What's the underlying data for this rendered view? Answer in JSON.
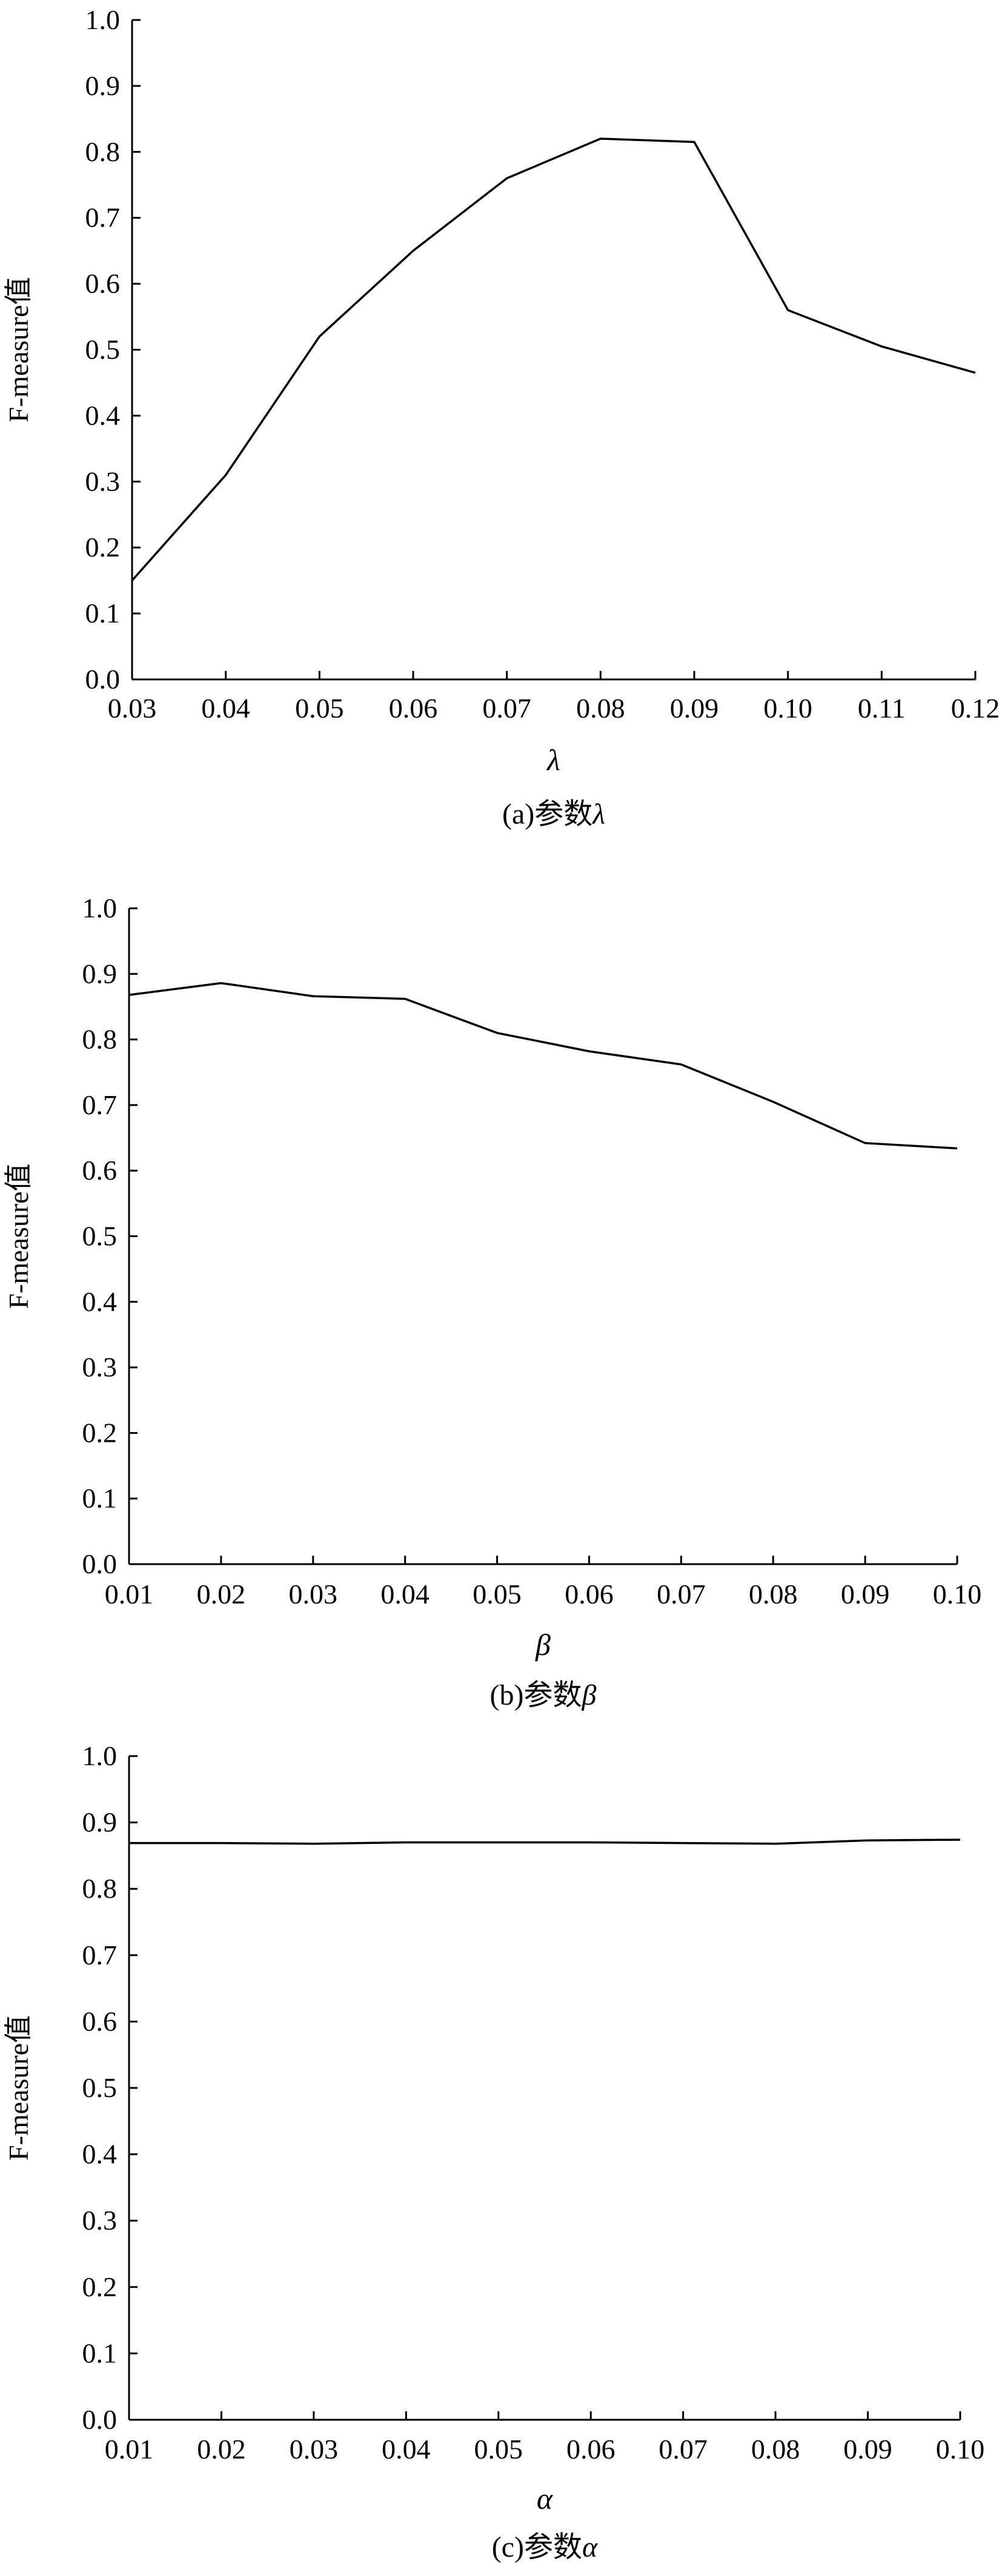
{
  "figure": {
    "charts": [
      {
        "id": "a",
        "type": "line",
        "title": "",
        "xlabel": "λ",
        "ylabel": "F-measure值",
        "caption_prefix": "(a)参数",
        "caption_symbol": "λ",
        "x": [
          0.03,
          0.04,
          0.05,
          0.06,
          0.07,
          0.08,
          0.09,
          0.1,
          0.11,
          0.12
        ],
        "x_tick_labels": [
          "0.03",
          "0.04",
          "0.05",
          "0.06",
          "0.07",
          "0.08",
          "0.09",
          "0.10",
          "0.11",
          "0.12"
        ],
        "y_tick_labels": [
          "0.0",
          "0.1",
          "0.2",
          "0.3",
          "0.4",
          "0.5",
          "0.6",
          "0.7",
          "0.8",
          "0.9",
          "1.0"
        ],
        "series": [
          {
            "values": [
              0.15,
              0.31,
              0.52,
              0.65,
              0.76,
              0.82,
              0.815,
              0.56,
              0.505,
              0.465
            ]
          }
        ],
        "xlim": [
          0.03,
          0.12
        ],
        "ylim": [
          0.0,
          1.0
        ],
        "grid": false,
        "line_color": "#000000"
      },
      {
        "id": "b",
        "type": "line",
        "title": "",
        "xlabel": "β",
        "ylabel": "F-measure值",
        "caption_prefix": "(b)参数",
        "caption_symbol": "β",
        "x": [
          0.01,
          0.02,
          0.03,
          0.04,
          0.05,
          0.06,
          0.07,
          0.08,
          0.09,
          0.1
        ],
        "x_tick_labels": [
          "0.01",
          "0.02",
          "0.03",
          "0.04",
          "0.05",
          "0.06",
          "0.07",
          "0.08",
          "0.09",
          "0.10"
        ],
        "y_tick_labels": [
          "0.0",
          "0.1",
          "0.2",
          "0.3",
          "0.4",
          "0.5",
          "0.6",
          "0.7",
          "0.8",
          "0.9",
          "1.0"
        ],
        "series": [
          {
            "values": [
              0.868,
              0.886,
              0.866,
              0.862,
              0.81,
              0.782,
              0.762,
              0.705,
              0.642,
              0.634
            ]
          }
        ],
        "xlim": [
          0.01,
          0.1
        ],
        "ylim": [
          0.0,
          1.0
        ],
        "grid": false,
        "line_color": "#000000"
      },
      {
        "id": "c",
        "type": "line",
        "title": "",
        "xlabel": "α",
        "ylabel": "F-measure值",
        "caption_prefix": "(c)参数",
        "caption_symbol": "α",
        "x": [
          0.01,
          0.02,
          0.03,
          0.04,
          0.05,
          0.06,
          0.07,
          0.08,
          0.09,
          0.1
        ],
        "x_tick_labels": [
          "0.01",
          "0.02",
          "0.03",
          "0.04",
          "0.05",
          "0.06",
          "0.07",
          "0.08",
          "0.09",
          "0.10"
        ],
        "y_tick_labels": [
          "0.0",
          "0.1",
          "0.2",
          "0.3",
          "0.4",
          "0.5",
          "0.6",
          "0.7",
          "0.8",
          "0.9",
          "1.0"
        ],
        "series": [
          {
            "values": [
              0.869,
              0.869,
              0.868,
              0.87,
              0.87,
              0.87,
              0.869,
              0.868,
              0.873,
              0.874
            ]
          }
        ],
        "xlim": [
          0.01,
          0.1
        ],
        "ylim": [
          0.0,
          1.0
        ],
        "grid": false,
        "line_color": "#000000"
      }
    ]
  }
}
